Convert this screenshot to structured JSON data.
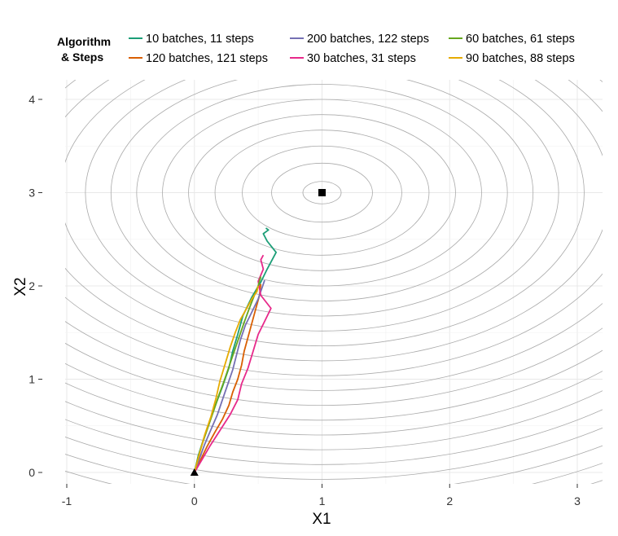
{
  "chart_data": {
    "type": "line",
    "title": "",
    "xlabel": "X1",
    "ylabel": "X2",
    "xlim": [
      -1,
      3
    ],
    "ylim": [
      0,
      4
    ],
    "xticks": [
      "-1",
      "0",
      "1",
      "2",
      "3"
    ],
    "yticks": [
      "0",
      "1",
      "2",
      "3",
      "4"
    ],
    "grid": true,
    "legend": {
      "title_line1": "Algorithm",
      "title_line2": "& Steps",
      "position": "top",
      "entries": [
        {
          "label": "10 batches, 11  steps",
          "color": "#1b9e77"
        },
        {
          "label": "120 batches, 121  steps",
          "color": "#d95f02"
        },
        {
          "label": "200 batches, 122  steps",
          "color": "#7570b3"
        },
        {
          "label": "30 batches, 31  steps",
          "color": "#e7298a"
        },
        {
          "label": "60 batches, 61  steps",
          "color": "#66a61e"
        },
        {
          "label": "90 batches, 88  steps",
          "color": "#e6ab02"
        }
      ]
    },
    "start_point": [
      0,
      0
    ],
    "optimum_point": [
      1,
      3
    ],
    "contours": {
      "center": [
        1,
        3
      ],
      "levels": [
        0.0144,
        0.1,
        0.25,
        0.45,
        0.7,
        1.0,
        1.35,
        1.75,
        2.2,
        2.7,
        3.25,
        3.85,
        4.5,
        5.2,
        5.95,
        6.75,
        7.6,
        8.5,
        9.45,
        10.45,
        11.5,
        12.6,
        13.75,
        14.95
      ],
      "color": "#aaaaaa"
    },
    "series": [
      {
        "name": "10 batches, 11  steps",
        "color": "#1b9e77",
        "points": [
          [
            0,
            0
          ],
          [
            0.03,
            0.18
          ],
          [
            0.07,
            0.35
          ],
          [
            0.12,
            0.55
          ],
          [
            0.17,
            0.74
          ],
          [
            0.22,
            0.92
          ],
          [
            0.27,
            1.12
          ],
          [
            0.3,
            1.3
          ],
          [
            0.34,
            1.48
          ],
          [
            0.38,
            1.68
          ],
          [
            0.45,
            1.88
          ],
          [
            0.52,
            2.04
          ],
          [
            0.57,
            2.18
          ],
          [
            0.64,
            2.36
          ],
          [
            0.57,
            2.48
          ],
          [
            0.54,
            2.56
          ],
          [
            0.58,
            2.6
          ],
          [
            0.56,
            2.62
          ]
        ]
      },
      {
        "name": "120 batches, 121  steps",
        "color": "#d95f02",
        "points": [
          [
            0,
            0
          ],
          [
            0.05,
            0.14
          ],
          [
            0.1,
            0.28
          ],
          [
            0.16,
            0.43
          ],
          [
            0.22,
            0.57
          ],
          [
            0.27,
            0.72
          ],
          [
            0.3,
            0.86
          ],
          [
            0.34,
            1.0
          ],
          [
            0.37,
            1.15
          ],
          [
            0.39,
            1.3
          ],
          [
            0.42,
            1.45
          ],
          [
            0.45,
            1.6
          ],
          [
            0.48,
            1.75
          ],
          [
            0.51,
            1.9
          ],
          [
            0.52,
            2.02
          ]
        ]
      },
      {
        "name": "200 batches, 122  steps",
        "color": "#7570b3",
        "points": [
          [
            0,
            0
          ],
          [
            0.04,
            0.15
          ],
          [
            0.08,
            0.3
          ],
          [
            0.13,
            0.46
          ],
          [
            0.18,
            0.62
          ],
          [
            0.22,
            0.78
          ],
          [
            0.26,
            0.94
          ],
          [
            0.3,
            1.1
          ],
          [
            0.33,
            1.26
          ],
          [
            0.36,
            1.42
          ],
          [
            0.4,
            1.58
          ],
          [
            0.45,
            1.72
          ],
          [
            0.5,
            1.86
          ],
          [
            0.53,
            1.98
          ],
          [
            0.55,
            2.06
          ]
        ]
      },
      {
        "name": "30 batches, 31  steps",
        "color": "#e7298a",
        "points": [
          [
            0,
            0
          ],
          [
            0.06,
            0.14
          ],
          [
            0.12,
            0.28
          ],
          [
            0.2,
            0.45
          ],
          [
            0.28,
            0.62
          ],
          [
            0.34,
            0.78
          ],
          [
            0.37,
            0.95
          ],
          [
            0.42,
            1.12
          ],
          [
            0.46,
            1.3
          ],
          [
            0.5,
            1.48
          ],
          [
            0.55,
            1.62
          ],
          [
            0.6,
            1.76
          ],
          [
            0.52,
            1.9
          ],
          [
            0.5,
            2.05
          ],
          [
            0.54,
            2.18
          ],
          [
            0.52,
            2.28
          ],
          [
            0.54,
            2.33
          ]
        ]
      },
      {
        "name": "60 batches, 61  steps",
        "color": "#66a61e",
        "points": [
          [
            0,
            0
          ],
          [
            0.03,
            0.17
          ],
          [
            0.07,
            0.34
          ],
          [
            0.11,
            0.5
          ],
          [
            0.15,
            0.66
          ],
          [
            0.19,
            0.82
          ],
          [
            0.23,
            0.97
          ],
          [
            0.27,
            1.13
          ],
          [
            0.31,
            1.29
          ],
          [
            0.35,
            1.45
          ],
          [
            0.39,
            1.61
          ],
          [
            0.43,
            1.76
          ],
          [
            0.47,
            1.9
          ],
          [
            0.5,
            2.0
          ],
          [
            0.52,
            2.1
          ]
        ]
      },
      {
        "name": "90 batches, 88  steps",
        "color": "#e6ab02",
        "points": [
          [
            0,
            0
          ],
          [
            0.04,
            0.2
          ],
          [
            0.08,
            0.4
          ],
          [
            0.13,
            0.6
          ],
          [
            0.17,
            0.8
          ],
          [
            0.2,
            0.98
          ],
          [
            0.24,
            1.16
          ],
          [
            0.28,
            1.34
          ],
          [
            0.32,
            1.5
          ],
          [
            0.36,
            1.64
          ],
          [
            0.41,
            1.76
          ],
          [
            0.45,
            1.86
          ],
          [
            0.49,
            1.94
          ],
          [
            0.5,
            2.0
          ]
        ]
      }
    ]
  }
}
